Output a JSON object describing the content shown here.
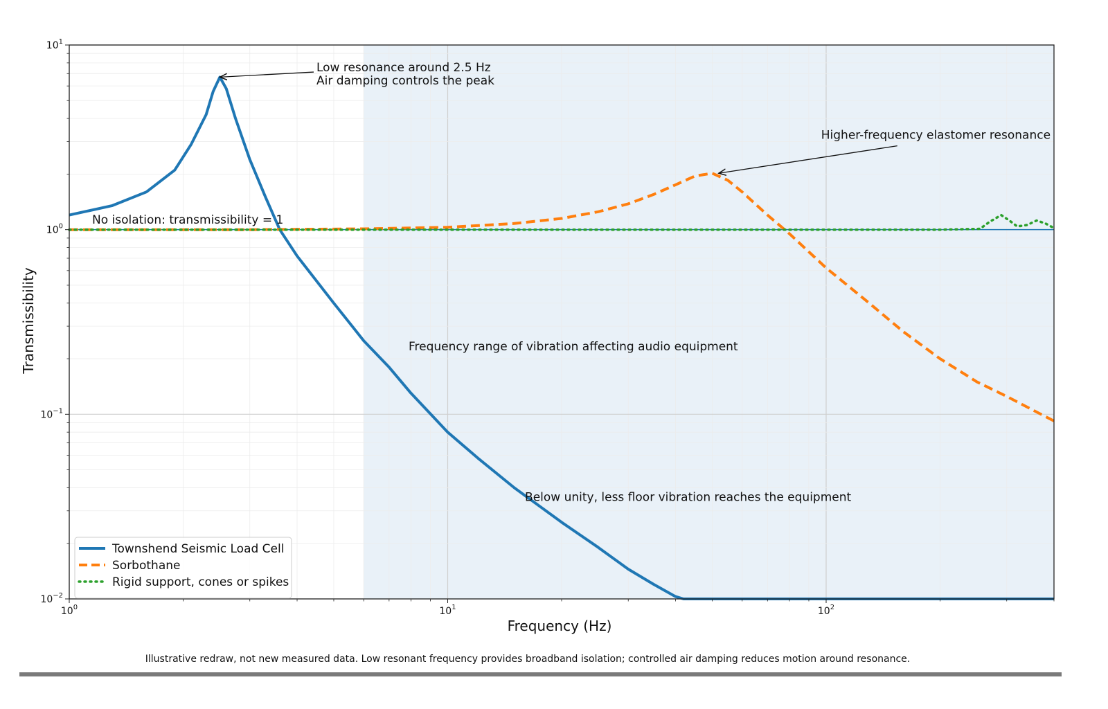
{
  "chart_data": {
    "type": "line",
    "xlabel": "Frequency (Hz)",
    "ylabel": "Transmissibility",
    "xscale": "log",
    "yscale": "log",
    "xlim": [
      1,
      400
    ],
    "ylim": [
      0.01,
      10
    ],
    "x_ticks": [
      {
        "base": "10",
        "exp": "0",
        "value": 1
      },
      {
        "base": "10",
        "exp": "1",
        "value": 10
      },
      {
        "base": "10",
        "exp": "2",
        "value": 100
      }
    ],
    "y_ticks": [
      {
        "base": "10",
        "exp": "1",
        "value": 10
      },
      {
        "base": "10",
        "exp": "0",
        "value": 1
      },
      {
        "base": "10",
        "exp": "−1",
        "value": 0.1
      },
      {
        "base": "10",
        "exp": "−2",
        "value": 0.01
      }
    ],
    "grid": true,
    "legend_position": "lower-left",
    "shaded_region": {
      "x_start": 6,
      "x_end": 400,
      "label": "Frequency range of vibration affecting audio equipment",
      "color": "#e9f1f8"
    },
    "reference_line": {
      "y": 1,
      "label": "No isolation: transmissibility = 1",
      "color": "#1f77b4"
    },
    "series": [
      {
        "name": "Townshend Seismic Load Cell",
        "color": "#1f77b4",
        "style": "solid",
        "points": [
          [
            1,
            1.2
          ],
          [
            1.3,
            1.35
          ],
          [
            1.6,
            1.6
          ],
          [
            1.9,
            2.1
          ],
          [
            2.1,
            2.9
          ],
          [
            2.3,
            4.2
          ],
          [
            2.4,
            5.6
          ],
          [
            2.5,
            6.7
          ],
          [
            2.6,
            5.8
          ],
          [
            2.75,
            4.0
          ],
          [
            3.0,
            2.4
          ],
          [
            3.3,
            1.5
          ],
          [
            3.6,
            1.0
          ],
          [
            4,
            0.72
          ],
          [
            5,
            0.4
          ],
          [
            6,
            0.25
          ],
          [
            7,
            0.18
          ],
          [
            8,
            0.13
          ],
          [
            10,
            0.08
          ],
          [
            12,
            0.058
          ],
          [
            15,
            0.04
          ],
          [
            20,
            0.026
          ],
          [
            25,
            0.019
          ],
          [
            30,
            0.0145
          ],
          [
            35,
            0.012
          ],
          [
            40,
            0.0103
          ],
          [
            42,
            0.01
          ],
          [
            60,
            0.01
          ],
          [
            100,
            0.01
          ],
          [
            200,
            0.01
          ],
          [
            400,
            0.01
          ]
        ]
      },
      {
        "name": "Sorbothane",
        "color": "#ff7f0e",
        "style": "dashed",
        "points": [
          [
            1,
            1.0
          ],
          [
            3,
            1.0
          ],
          [
            6,
            1.01
          ],
          [
            10,
            1.03
          ],
          [
            15,
            1.08
          ],
          [
            20,
            1.15
          ],
          [
            25,
            1.25
          ],
          [
            30,
            1.38
          ],
          [
            35,
            1.55
          ],
          [
            40,
            1.75
          ],
          [
            45,
            1.95
          ],
          [
            50,
            2.02
          ],
          [
            55,
            1.85
          ],
          [
            60,
            1.6
          ],
          [
            70,
            1.2
          ],
          [
            80,
            0.95
          ],
          [
            100,
            0.62
          ],
          [
            130,
            0.4
          ],
          [
            160,
            0.28
          ],
          [
            200,
            0.2
          ],
          [
            250,
            0.15
          ],
          [
            300,
            0.125
          ],
          [
            350,
            0.106
          ],
          [
            400,
            0.092
          ]
        ]
      },
      {
        "name": "Rigid support, cones or spikes",
        "color": "#2ca02c",
        "style": "dotted",
        "points": [
          [
            1,
            1.0
          ],
          [
            100,
            1.0
          ],
          [
            200,
            1.0
          ],
          [
            255,
            1.01
          ],
          [
            270,
            1.1
          ],
          [
            290,
            1.2
          ],
          [
            305,
            1.12
          ],
          [
            320,
            1.04
          ],
          [
            340,
            1.06
          ],
          [
            360,
            1.12
          ],
          [
            380,
            1.08
          ],
          [
            400,
            1.02
          ]
        ]
      }
    ],
    "annotations": [
      {
        "lines": [
          "Low resonance around 2.5 Hz",
          "Air damping controls the peak"
        ],
        "target": [
          2.5,
          6.7
        ],
        "text_at": [
          4.5,
          7.2
        ],
        "arrow": true
      },
      {
        "lines": [
          "Higher-frequency elastomer resonance"
        ],
        "target": [
          52,
          2.02
        ],
        "text_at": [
          97,
          3.1
        ],
        "arrow": true
      },
      {
        "lines": [
          "Below unity, less floor vibration reaches the equipment"
        ],
        "text_at": [
          16,
          0.034
        ],
        "arrow": false
      }
    ]
  },
  "caption": "Illustrative redraw, not new measured data. Low resonant frequency provides broadband isolation; controlled air damping reduces motion around resonance."
}
